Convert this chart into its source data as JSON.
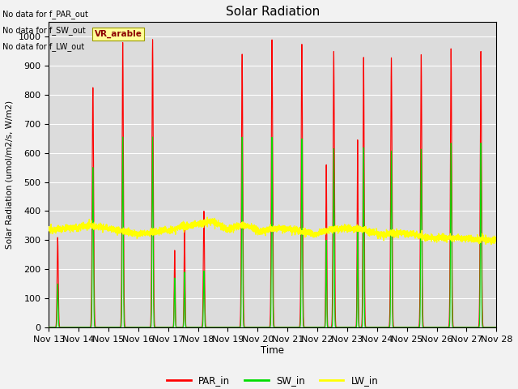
{
  "title": "Solar Radiation",
  "ylabel": "Solar Radiation (umol/m2/s, W/m2)",
  "xlabel": "Time",
  "ylim": [
    0,
    1050
  ],
  "background_color": "#dcdcdc",
  "grid_color": "#ffffff",
  "annotations": [
    "No data for f_PAR_out",
    "No data for f_SW_out",
    "No data for f_LW_out"
  ],
  "vr_label": "VR_arable",
  "legend": [
    "PAR_in",
    "SW_in",
    "LW_in"
  ],
  "line_colors": [
    "#ff0000",
    "#00dd00",
    "#ffff00"
  ],
  "x_ticks": [
    "Nov 13",
    "Nov 14",
    "Nov 15",
    "Nov 16",
    "Nov 17",
    "Nov 18",
    "Nov 19",
    "Nov 20",
    "Nov 21",
    "Nov 22",
    "Nov 23",
    "Nov 24",
    "Nov 25",
    "Nov 26",
    "Nov 27",
    "Nov 28"
  ],
  "n_points": 4320,
  "days": 15
}
